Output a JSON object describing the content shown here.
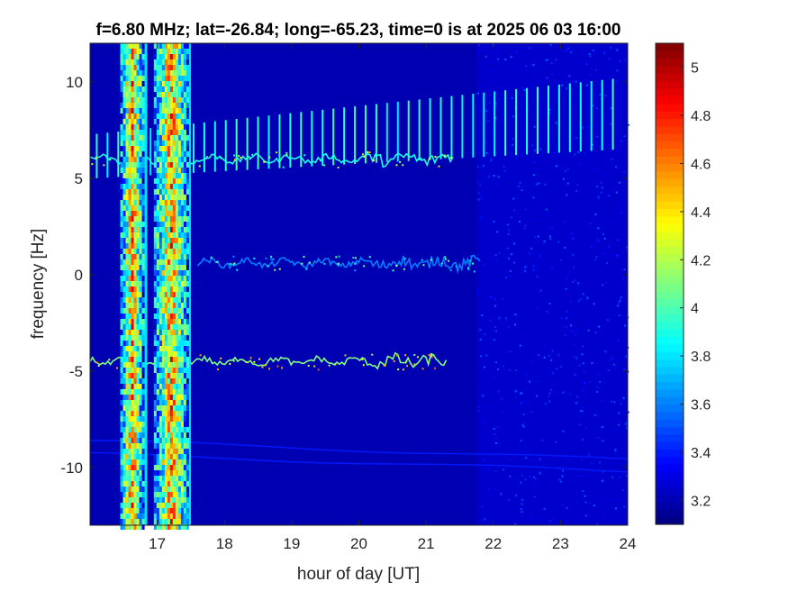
{
  "chart_data": {
    "type": "heatmap",
    "title": "f=6.80 MHz;  lat=-26.84; long=-65.23, time=0 is at 2025 06 03 16:00",
    "xlabel": "hour of day [UT]",
    "ylabel": "frequency [Hz]",
    "xlim": [
      16.0,
      24.0
    ],
    "ylim": [
      -13.0,
      12.0
    ],
    "x_ticks": [
      "17",
      "18",
      "19",
      "20",
      "21",
      "22",
      "23",
      "24"
    ],
    "x_tick_values": [
      17,
      18,
      19,
      20,
      21,
      22,
      23,
      24
    ],
    "y_ticks": [
      "10",
      "5",
      "0",
      "-5",
      "-10"
    ],
    "y_tick_values": [
      10,
      5,
      0,
      -5,
      -10
    ],
    "colorbar": {
      "range": [
        3.1,
        5.1
      ],
      "ticks": [
        "5",
        "4.8",
        "4.6",
        "4.4",
        "4.2",
        "4",
        "3.8",
        "3.6",
        "3.4",
        "3.2"
      ],
      "tick_values": [
        5.0,
        4.8,
        4.6,
        4.4,
        4.2,
        4.0,
        3.8,
        3.6,
        3.4,
        3.2
      ],
      "colormap": "jet"
    },
    "background_level": 3.2,
    "broadband_bands": [
      {
        "x_start": 16.45,
        "x_end": 16.85,
        "level": 4.5
      },
      {
        "x_start": 16.95,
        "x_end": 17.5,
        "level": 4.5
      }
    ],
    "doppler_traces": [
      {
        "center_freq": 6.0,
        "x_start": 16.0,
        "x_end": 21.4,
        "level": 3.9
      },
      {
        "center_freq": 0.6,
        "x_start": 17.6,
        "x_end": 21.8,
        "level": 3.6
      },
      {
        "center_freq": -4.5,
        "x_start": 16.0,
        "x_end": 21.3,
        "level": 4.1
      }
    ],
    "periodic_streaks": {
      "x_start": 16.1,
      "x_end": 23.9,
      "period_hours": 0.16,
      "freq_low_start": 5.0,
      "freq_high_start": 7.3,
      "freq_low_end": 6.5,
      "freq_high_end": 10.2,
      "level": 3.8
    },
    "faint_lines": [
      {
        "x_start": 16.0,
        "x_end": 24.0,
        "freq_start": -8.6,
        "freq_end": -9.6,
        "level": 3.4
      },
      {
        "x_start": 16.0,
        "x_end": 24.0,
        "freq_start": -9.3,
        "freq_end": -10.2,
        "level": 3.4
      }
    ],
    "noisy_region": {
      "x_start": 21.75,
      "x_end": 24.0,
      "level": 3.3
    }
  }
}
